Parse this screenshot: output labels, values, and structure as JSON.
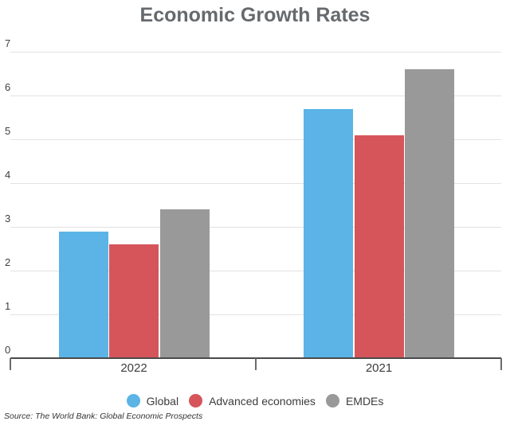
{
  "title": "Economic Growth Rates",
  "source": "Source: The World Bank: Global Economic Prospects",
  "chart_data": {
    "type": "bar",
    "title": "Economic Growth Rates",
    "categories": [
      "2022",
      "2021"
    ],
    "series": [
      {
        "name": "Global",
        "color": "#5bb4e5",
        "values": [
          2.9,
          5.7
        ]
      },
      {
        "name": "Advanced economies",
        "color": "#d6555a",
        "values": [
          2.6,
          5.1
        ]
      },
      {
        "name": "EMDEs",
        "color": "#999999",
        "values": [
          3.4,
          6.6
        ]
      }
    ],
    "ylabel": "",
    "xlabel": "",
    "ylim": [
      0,
      7
    ],
    "yticks": [
      0,
      1,
      2,
      3,
      4,
      5,
      6,
      7
    ],
    "grid": true,
    "legend_position": "bottom",
    "annotations": [],
    "source": "Source: The World Bank: Global Economic Prospects"
  },
  "colors": {
    "title_text": "#666a6d",
    "axis_line": "#4a4a4a",
    "grid_line": "#e2e2e2",
    "tick_text": "#404040",
    "category_text": "#3c3c3c",
    "background": "#ffffff"
  }
}
